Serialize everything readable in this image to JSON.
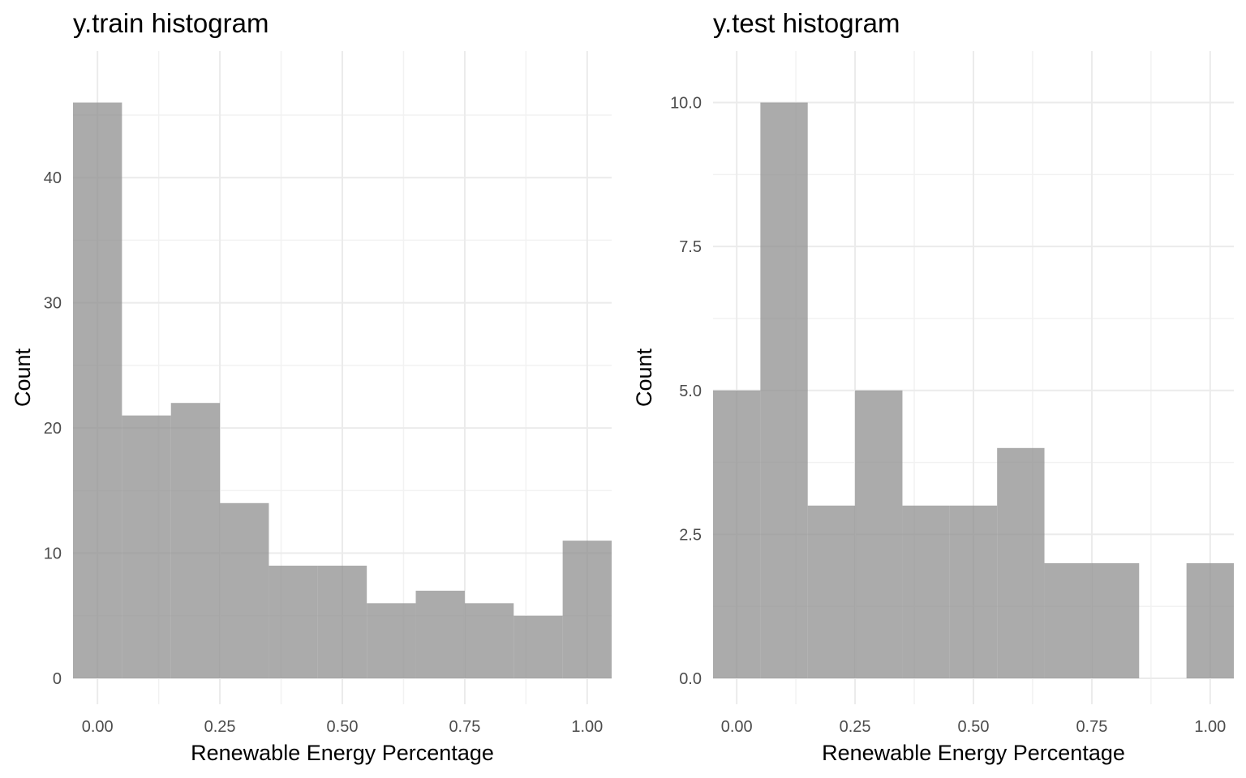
{
  "chart_data": [
    {
      "type": "bar",
      "title": "y.train histogram",
      "xlabel": "Renewable Energy Percentage",
      "ylabel": "Count",
      "bin_width": 0.1,
      "bin_centers": [
        0.0,
        0.1,
        0.2,
        0.3,
        0.4,
        0.5,
        0.6,
        0.7,
        0.8,
        0.9,
        1.0
      ],
      "values": [
        46,
        21,
        22,
        14,
        9,
        9,
        6,
        7,
        6,
        5,
        11
      ],
      "xlim": [
        -0.05,
        1.05
      ],
      "ylim": [
        0,
        46
      ],
      "x_ticks": [
        0.0,
        0.25,
        0.5,
        0.75,
        1.0
      ],
      "x_tick_labels": [
        "0.00",
        "0.25",
        "0.50",
        "0.75",
        "1.00"
      ],
      "y_ticks": [
        0,
        10,
        20,
        30,
        40
      ],
      "y_tick_labels": [
        "0",
        "10",
        "20",
        "30",
        "40"
      ],
      "grid": true
    },
    {
      "type": "bar",
      "title": "y.test histogram",
      "xlabel": "Renewable Energy Percentage",
      "ylabel": "Count",
      "bin_width": 0.1,
      "bin_centers": [
        0.0,
        0.1,
        0.2,
        0.3,
        0.4,
        0.5,
        0.6,
        0.7,
        0.8,
        0.9,
        1.0
      ],
      "values": [
        5,
        10,
        3,
        5,
        3,
        3,
        4,
        2,
        2,
        0,
        2
      ],
      "xlim": [
        -0.05,
        1.05
      ],
      "ylim": [
        0,
        10
      ],
      "x_ticks": [
        0.0,
        0.25,
        0.5,
        0.75,
        1.0
      ],
      "x_tick_labels": [
        "0.00",
        "0.25",
        "0.50",
        "0.75",
        "1.00"
      ],
      "y_ticks": [
        0,
        2.5,
        5,
        7.5,
        10
      ],
      "y_tick_labels": [
        "0.0",
        "2.5",
        "5.0",
        "7.5",
        "10.0"
      ],
      "grid": true
    }
  ]
}
